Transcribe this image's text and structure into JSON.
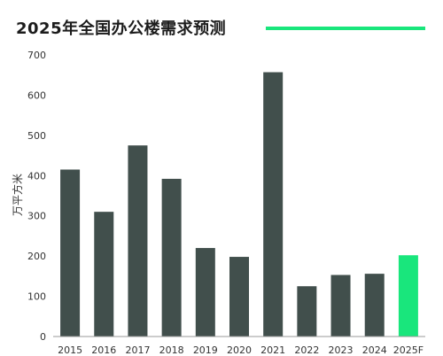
{
  "title": "2025年全国办公楼需求预测",
  "colors": {
    "bar": "#414f4c",
    "forecast_bar": "#19e67c",
    "accent_line": "#19e67c",
    "axis": "#999999",
    "text": "#333333"
  },
  "chart_data": {
    "type": "bar",
    "title": "2025年全国办公楼需求预测",
    "ylabel": "万平方米",
    "xlabel": "",
    "categories": [
      "2015",
      "2016",
      "2017",
      "2018",
      "2019",
      "2020",
      "2021",
      "2022",
      "2023",
      "2024",
      "2025F"
    ],
    "values": [
      415,
      310,
      475,
      392,
      220,
      198,
      657,
      125,
      153,
      156,
      202
    ],
    "highlight": [
      "2025F"
    ],
    "ylim": [
      0,
      700
    ],
    "yticks": [
      0,
      100,
      200,
      300,
      400,
      500,
      600,
      700
    ],
    "grid": false,
    "legend": "none"
  }
}
